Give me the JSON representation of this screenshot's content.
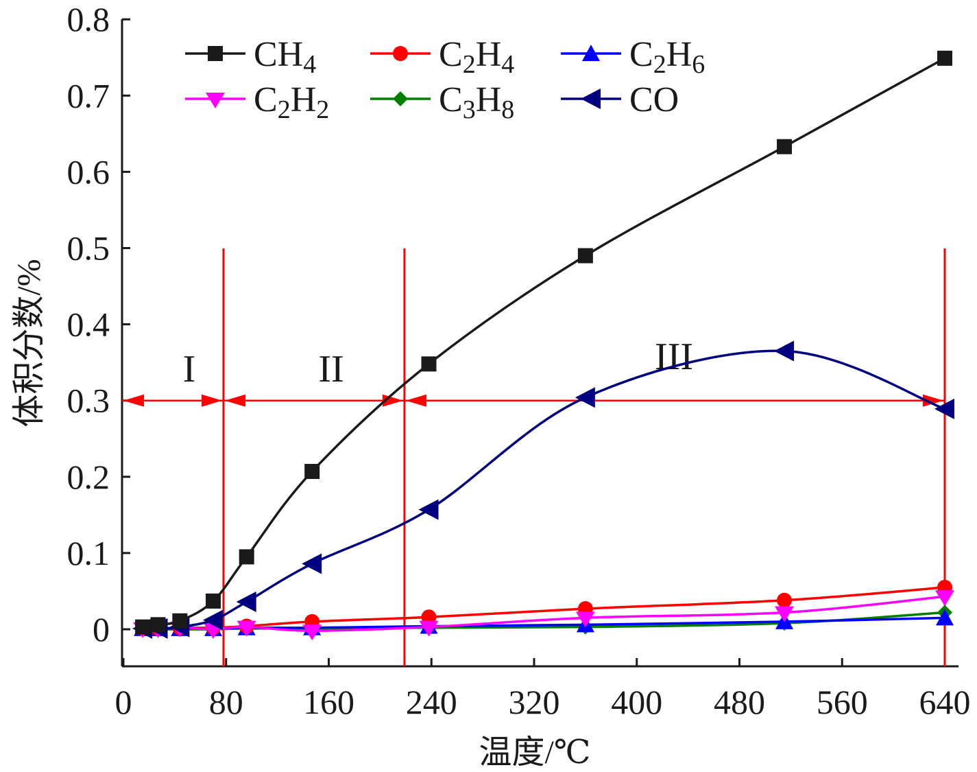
{
  "chart_data": {
    "type": "line",
    "xlabel": "温度/℃",
    "ylabel": "体积分数/%",
    "xlim": [
      0,
      640
    ],
    "ylim": [
      -0.05,
      0.8
    ],
    "xticks": [
      0,
      80,
      160,
      240,
      320,
      400,
      480,
      560,
      640
    ],
    "yticks": [
      0,
      0.1,
      0.2,
      0.3,
      0.4,
      0.5,
      0.6,
      0.7,
      0.8
    ],
    "ytick_labels": [
      "0",
      "0.1",
      "0.2",
      "0.3",
      "0.4",
      "0.5",
      "0.6",
      "0.7",
      "0.8"
    ],
    "grid": false,
    "legend_placement": "top-left",
    "x": [
      15,
      27,
      44,
      70,
      96,
      147,
      238,
      360,
      515,
      640
    ],
    "series": [
      {
        "name": "CH4",
        "base": "CH",
        "sub": "4",
        "color": "#1a1a1a",
        "marker": "square",
        "values": [
          0.003,
          0.006,
          0.011,
          0.037,
          0.095,
          0.207,
          0.348,
          0.49,
          0.633,
          0.749
        ]
      },
      {
        "name": "C2H4",
        "base": "C2H4",
        "color": "#ff0000",
        "marker": "circle",
        "values": [
          0.001,
          0.001,
          0.002,
          0.002,
          0.004,
          0.01,
          0.016,
          0.027,
          0.038,
          0.055
        ]
      },
      {
        "name": "C2H6",
        "base": "C2H6",
        "color": "#0000ff",
        "marker": "triangle-up",
        "values": [
          0.001,
          0.001,
          0.001,
          0.001,
          0.002,
          0.002,
          0.004,
          0.006,
          0.01,
          0.015
        ]
      },
      {
        "name": "C2H2",
        "base": "C2H2",
        "color": "#ff00ff",
        "marker": "triangle-down",
        "values": [
          0.001,
          0.001,
          0.002,
          0.0,
          0.003,
          -0.002,
          0.003,
          0.015,
          0.022,
          0.043
        ]
      },
      {
        "name": "C3H8",
        "base": "C3H8",
        "color": "#008000",
        "marker": "diamond",
        "values": [
          0.0,
          0.0,
          0.0,
          0.0,
          0.001,
          0.001,
          0.002,
          0.003,
          0.008,
          0.022
        ]
      },
      {
        "name": "CO",
        "base": "CO",
        "color": "#000080",
        "marker": "triangle-left",
        "values": [
          0.001,
          0.001,
          0.003,
          0.012,
          0.036,
          0.086,
          0.157,
          0.304,
          0.365,
          0.289
        ]
      }
    ],
    "legend": [
      {
        "main": "CH",
        "sub": "4",
        "tail": "",
        "sub2": ""
      },
      {
        "main": "C",
        "sub": "2",
        "tail": "H",
        "sub2": "4"
      },
      {
        "main": "C",
        "sub": "2",
        "tail": "H",
        "sub2": "6"
      },
      {
        "main": "C",
        "sub": "2",
        "tail": "H",
        "sub2": "2"
      },
      {
        "main": "C",
        "sub": "3",
        "tail": "H",
        "sub2": "8"
      },
      {
        "main": "CO",
        "sub": "",
        "tail": "",
        "sub2": ""
      }
    ],
    "annotations": {
      "stage_color": "#ff0000",
      "stage_boundaries": [
        78,
        219,
        640
      ],
      "arrow_level": 0.3,
      "stage_labels": [
        "I",
        "II",
        "III"
      ]
    }
  }
}
